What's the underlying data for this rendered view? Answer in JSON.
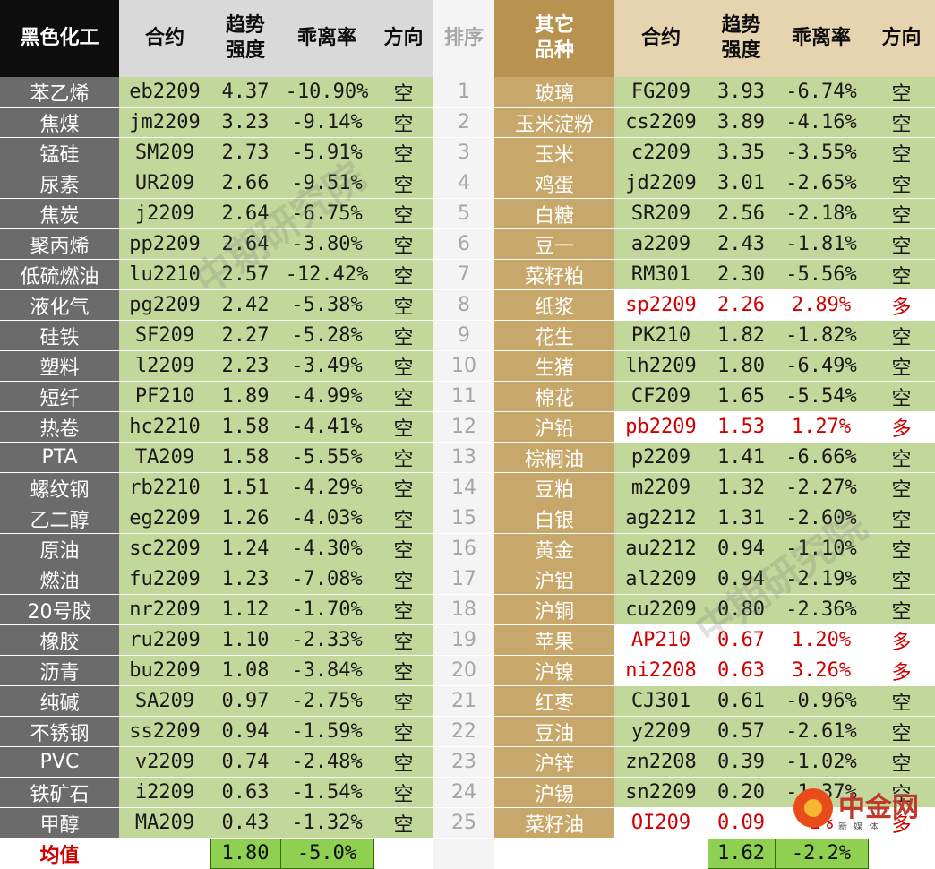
{
  "header": {
    "left_title": "黑色化工",
    "contract": "合约",
    "trend": "趋势强度",
    "deviation": "乖离率",
    "direction": "方向",
    "rank": "排序",
    "right_title": "其它品种"
  },
  "rows": [
    {
      "rank": "1",
      "l": {
        "name": "苯乙烯",
        "code": "eb2209",
        "trend": "4.37",
        "dev": "-10.90%",
        "dir": "空"
      },
      "r": {
        "name": "玻璃",
        "code": "FG209",
        "trend": "3.93",
        "dev": "-6.74%",
        "dir": "空"
      }
    },
    {
      "rank": "2",
      "l": {
        "name": "焦煤",
        "code": "jm2209",
        "trend": "3.23",
        "dev": "-9.14%",
        "dir": "空"
      },
      "r": {
        "name": "玉米淀粉",
        "code": "cs2209",
        "trend": "3.89",
        "dev": "-4.16%",
        "dir": "空"
      }
    },
    {
      "rank": "3",
      "l": {
        "name": "锰硅",
        "code": "SM209",
        "trend": "2.73",
        "dev": "-5.91%",
        "dir": "空"
      },
      "r": {
        "name": "玉米",
        "code": "c2209",
        "trend": "3.35",
        "dev": "-3.55%",
        "dir": "空"
      }
    },
    {
      "rank": "4",
      "l": {
        "name": "尿素",
        "code": "UR209",
        "trend": "2.66",
        "dev": "-9.51%",
        "dir": "空"
      },
      "r": {
        "name": "鸡蛋",
        "code": "jd2209",
        "trend": "3.01",
        "dev": "-2.65%",
        "dir": "空"
      }
    },
    {
      "rank": "5",
      "l": {
        "name": "焦炭",
        "code": "j2209",
        "trend": "2.64",
        "dev": "-6.75%",
        "dir": "空"
      },
      "r": {
        "name": "白糖",
        "code": "SR209",
        "trend": "2.56",
        "dev": "-2.18%",
        "dir": "空"
      }
    },
    {
      "rank": "6",
      "l": {
        "name": "聚丙烯",
        "code": "pp2209",
        "trend": "2.64",
        "dev": "-3.80%",
        "dir": "空"
      },
      "r": {
        "name": "豆一",
        "code": "a2209",
        "trend": "2.43",
        "dev": "-1.81%",
        "dir": "空"
      }
    },
    {
      "rank": "7",
      "l": {
        "name": "低硫燃油",
        "code": "lu2210",
        "trend": "2.57",
        "dev": "-12.42%",
        "dir": "空"
      },
      "r": {
        "name": "菜籽粕",
        "code": "RM301",
        "trend": "2.30",
        "dev": "-5.56%",
        "dir": "空"
      }
    },
    {
      "rank": "8",
      "l": {
        "name": "液化气",
        "code": "pg2209",
        "trend": "2.42",
        "dev": "-5.38%",
        "dir": "空"
      },
      "r": {
        "name": "纸浆",
        "code": "sp2209",
        "trend": "2.26",
        "dev": "2.89%",
        "dir": "多",
        "bull": true
      }
    },
    {
      "rank": "9",
      "l": {
        "name": "硅铁",
        "code": "SF209",
        "trend": "2.27",
        "dev": "-5.28%",
        "dir": "空"
      },
      "r": {
        "name": "花生",
        "code": "PK210",
        "trend": "1.82",
        "dev": "-1.82%",
        "dir": "空"
      }
    },
    {
      "rank": "10",
      "l": {
        "name": "塑料",
        "code": "l2209",
        "trend": "2.23",
        "dev": "-3.49%",
        "dir": "空"
      },
      "r": {
        "name": "生猪",
        "code": "lh2209",
        "trend": "1.80",
        "dev": "-6.49%",
        "dir": "空"
      }
    },
    {
      "rank": "11",
      "l": {
        "name": "短纤",
        "code": "PF210",
        "trend": "1.89",
        "dev": "-4.99%",
        "dir": "空"
      },
      "r": {
        "name": "棉花",
        "code": "CF209",
        "trend": "1.65",
        "dev": "-5.54%",
        "dir": "空"
      }
    },
    {
      "rank": "12",
      "l": {
        "name": "热卷",
        "code": "hc2210",
        "trend": "1.58",
        "dev": "-4.41%",
        "dir": "空"
      },
      "r": {
        "name": "沪铅",
        "code": "pb2209",
        "trend": "1.53",
        "dev": "1.27%",
        "dir": "多",
        "bull": true
      }
    },
    {
      "rank": "13",
      "l": {
        "name": "PTA",
        "code": "TA209",
        "trend": "1.58",
        "dev": "-5.55%",
        "dir": "空"
      },
      "r": {
        "name": "棕榈油",
        "code": "p2209",
        "trend": "1.41",
        "dev": "-6.66%",
        "dir": "空"
      }
    },
    {
      "rank": "14",
      "l": {
        "name": "螺纹钢",
        "code": "rb2210",
        "trend": "1.51",
        "dev": "-4.29%",
        "dir": "空"
      },
      "r": {
        "name": "豆粕",
        "code": "m2209",
        "trend": "1.32",
        "dev": "-2.27%",
        "dir": "空"
      }
    },
    {
      "rank": "15",
      "l": {
        "name": "乙二醇",
        "code": "eg2209",
        "trend": "1.26",
        "dev": "-4.03%",
        "dir": "空"
      },
      "r": {
        "name": "白银",
        "code": "ag2212",
        "trend": "1.31",
        "dev": "-2.60%",
        "dir": "空"
      }
    },
    {
      "rank": "16",
      "l": {
        "name": "原油",
        "code": "sc2209",
        "trend": "1.24",
        "dev": "-4.30%",
        "dir": "空"
      },
      "r": {
        "name": "黄金",
        "code": "au2212",
        "trend": "0.94",
        "dev": "-1.10%",
        "dir": "空"
      }
    },
    {
      "rank": "17",
      "l": {
        "name": "燃油",
        "code": "fu2209",
        "trend": "1.23",
        "dev": "-7.08%",
        "dir": "空"
      },
      "r": {
        "name": "沪铝",
        "code": "al2209",
        "trend": "0.94",
        "dev": "-2.19%",
        "dir": "空"
      }
    },
    {
      "rank": "18",
      "l": {
        "name": "20号胶",
        "code": "nr2209",
        "trend": "1.12",
        "dev": "-1.70%",
        "dir": "空"
      },
      "r": {
        "name": "沪铜",
        "code": "cu2209",
        "trend": "0.80",
        "dev": "-2.36%",
        "dir": "空"
      }
    },
    {
      "rank": "19",
      "l": {
        "name": "橡胶",
        "code": "ru2209",
        "trend": "1.10",
        "dev": "-2.33%",
        "dir": "空"
      },
      "r": {
        "name": "苹果",
        "code": "AP210",
        "trend": "0.67",
        "dev": "1.20%",
        "dir": "多",
        "bull": true
      }
    },
    {
      "rank": "20",
      "l": {
        "name": "沥青",
        "code": "bu2209",
        "trend": "1.08",
        "dev": "-3.84%",
        "dir": "空"
      },
      "r": {
        "name": "沪镍",
        "code": "ni2208",
        "trend": "0.63",
        "dev": "3.26%",
        "dir": "多",
        "bull": true
      }
    },
    {
      "rank": "21",
      "l": {
        "name": "纯碱",
        "code": "SA209",
        "trend": "0.97",
        "dev": "-2.75%",
        "dir": "空"
      },
      "r": {
        "name": "红枣",
        "code": "CJ301",
        "trend": "0.61",
        "dev": "-0.96%",
        "dir": "空"
      }
    },
    {
      "rank": "22",
      "l": {
        "name": "不锈钢",
        "code": "ss2209",
        "trend": "0.94",
        "dev": "-1.59%",
        "dir": "空"
      },
      "r": {
        "name": "豆油",
        "code": "y2209",
        "trend": "0.57",
        "dev": "-2.61%",
        "dir": "空"
      }
    },
    {
      "rank": "23",
      "l": {
        "name": "PVC",
        "code": "v2209",
        "trend": "0.74",
        "dev": "-2.48%",
        "dir": "空"
      },
      "r": {
        "name": "沪锌",
        "code": "zn2208",
        "trend": "0.39",
        "dev": "-1.02%",
        "dir": "空"
      }
    },
    {
      "rank": "24",
      "l": {
        "name": "铁矿石",
        "code": "i2209",
        "trend": "0.63",
        "dev": "-1.54%",
        "dir": "空"
      },
      "r": {
        "name": "沪锡",
        "code": "sn2209",
        "trend": "0.20",
        "dev": "-1.37%",
        "dir": "空"
      }
    },
    {
      "rank": "25",
      "l": {
        "name": "甲醇",
        "code": "MA209",
        "trend": "0.43",
        "dev": "-1.32%",
        "dir": "空"
      },
      "r": {
        "name": "菜籽油",
        "code": "OI209",
        "trend": "0.09",
        "dev": "2%",
        "dir": "多",
        "bull": true
      }
    }
  ],
  "average": {
    "label": "均值",
    "left_trend": "1.80",
    "left_dev": "-5.0%",
    "right_trend": "1.62",
    "right_dev": "-2.2%"
  },
  "watermark": "中期研究院",
  "logo": {
    "text": "中金网",
    "sub": "新 媒 体"
  },
  "colors": {
    "name_bg": "#6b6b6b",
    "data_bg": "#c2d89a",
    "other_bg": "#c8a86a",
    "bull_text": "#d00000",
    "avg_bg": "#90d050"
  }
}
